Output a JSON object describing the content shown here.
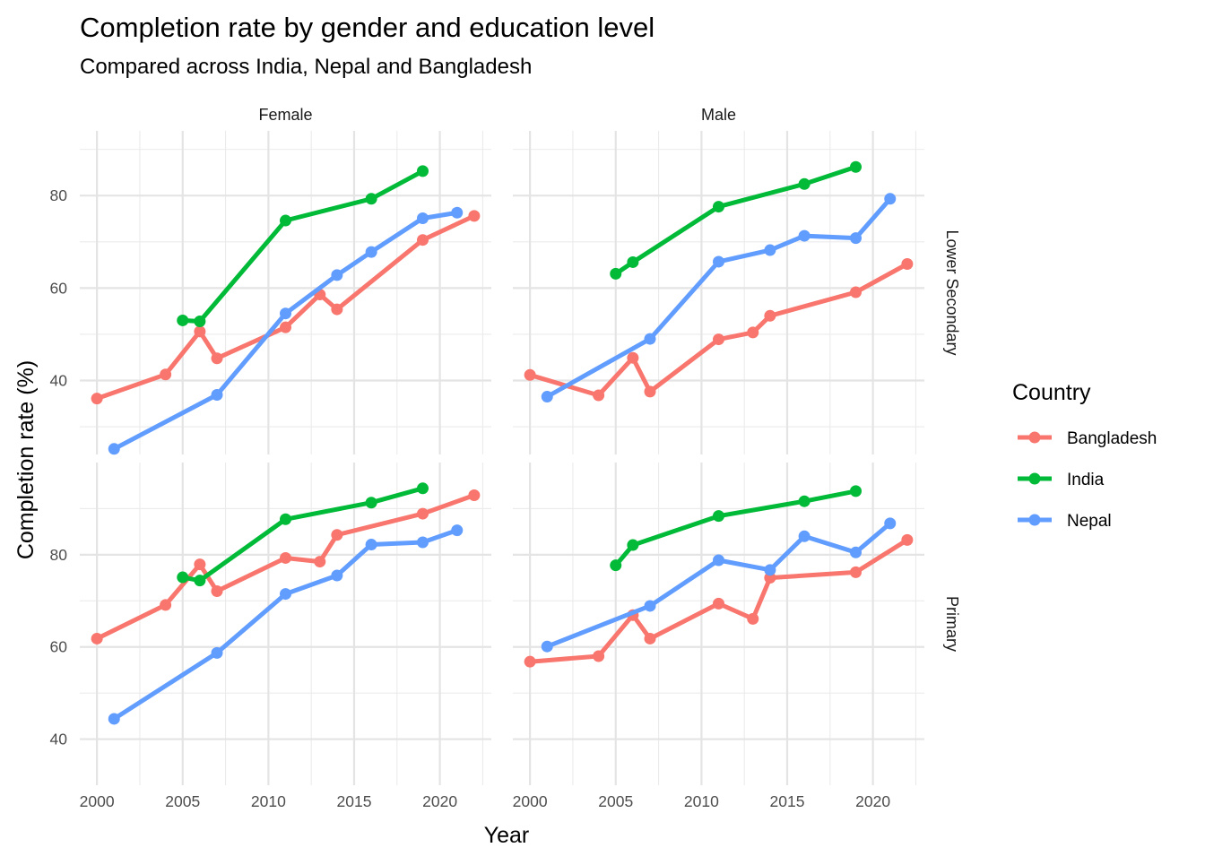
{
  "chart_data": {
    "type": "line",
    "title": "Completion rate by gender and education level",
    "subtitle": "Compared across India, Nepal and Bangladesh",
    "xlabel": "Year",
    "ylabel": "Completion rate (%)",
    "xlim": [
      1999,
      2023
    ],
    "x_ticks": [
      "2000",
      "2005",
      "2010",
      "2015",
      "2020"
    ],
    "y_ticks": [
      "40",
      "60",
      "80"
    ],
    "facet_cols": [
      "Female",
      "Male"
    ],
    "facet_rows": [
      "Lower Secondary",
      "Primary"
    ],
    "grid": true,
    "legend": {
      "title": "Country",
      "position": "right",
      "entries": [
        {
          "name": "Bangladesh",
          "color": "#F8766D"
        },
        {
          "name": "India",
          "color": "#00BA38"
        },
        {
          "name": "Nepal",
          "color": "#619CFF"
        }
      ]
    },
    "panels": [
      {
        "col": "Female",
        "row": "Lower Secondary",
        "ylim": [
          24,
          94
        ],
        "series": [
          {
            "name": "Bangladesh",
            "x": [
              2000,
              2004,
              2006,
              2007,
              2011,
              2013,
              2014,
              2019,
              2022
            ],
            "y": [
              36.1,
              41.3,
              50.6,
              44.8,
              51.5,
              58.6,
              55.4,
              70.4,
              75.6
            ]
          },
          {
            "name": "India",
            "x": [
              2005,
              2006,
              2011,
              2016,
              2019
            ],
            "y": [
              53.0,
              52.8,
              74.6,
              79.3,
              85.3
            ]
          },
          {
            "name": "Nepal",
            "x": [
              2001,
              2007,
              2011,
              2014,
              2016,
              2019,
              2021
            ],
            "y": [
              25.2,
              36.9,
              54.5,
              62.8,
              67.8,
              75.1,
              76.3
            ]
          }
        ]
      },
      {
        "col": "Male",
        "row": "Lower Secondary",
        "ylim": [
          24,
          94
        ],
        "series": [
          {
            "name": "Bangladesh",
            "x": [
              2000,
              2004,
              2006,
              2007,
              2011,
              2013,
              2014,
              2019,
              2022
            ],
            "y": [
              41.2,
              36.8,
              44.9,
              37.6,
              48.9,
              50.4,
              54.0,
              59.1,
              65.2
            ]
          },
          {
            "name": "India",
            "x": [
              2005,
              2006,
              2011,
              2016,
              2019
            ],
            "y": [
              63.1,
              65.6,
              77.6,
              82.5,
              86.2
            ]
          },
          {
            "name": "Nepal",
            "x": [
              2001,
              2007,
              2011,
              2014,
              2016,
              2019,
              2021
            ],
            "y": [
              36.5,
              49.0,
              65.7,
              68.2,
              71.3,
              70.8,
              79.3
            ]
          }
        ]
      },
      {
        "col": "Female",
        "row": "Primary",
        "ylim": [
          30,
          100
        ],
        "series": [
          {
            "name": "Bangladesh",
            "x": [
              2000,
              2004,
              2006,
              2007,
              2011,
              2013,
              2014,
              2019,
              2022
            ],
            "y": [
              61.8,
              69.1,
              77.9,
              72.1,
              79.3,
              78.5,
              84.3,
              88.9,
              92.9
            ]
          },
          {
            "name": "India",
            "x": [
              2005,
              2006,
              2011,
              2016,
              2019
            ],
            "y": [
              75.1,
              74.4,
              87.7,
              91.3,
              94.4
            ]
          },
          {
            "name": "Nepal",
            "x": [
              2001,
              2007,
              2011,
              2014,
              2016,
              2019,
              2021
            ],
            "y": [
              44.4,
              58.7,
              71.5,
              75.5,
              82.2,
              82.7,
              85.3
            ]
          }
        ]
      },
      {
        "col": "Male",
        "row": "Primary",
        "ylim": [
          30,
          100
        ],
        "series": [
          {
            "name": "Bangladesh",
            "x": [
              2000,
              2004,
              2006,
              2007,
              2011,
              2013,
              2014,
              2019,
              2022
            ],
            "y": [
              56.8,
              58.0,
              66.9,
              61.8,
              69.4,
              66.1,
              75.0,
              76.2,
              83.2
            ]
          },
          {
            "name": "India",
            "x": [
              2005,
              2006,
              2011,
              2016,
              2019
            ],
            "y": [
              77.7,
              82.1,
              88.4,
              91.6,
              93.8
            ]
          },
          {
            "name": "Nepal",
            "x": [
              2001,
              2007,
              2011,
              2014,
              2016,
              2019,
              2021
            ],
            "y": [
              60.1,
              68.9,
              78.8,
              76.7,
              84.0,
              80.5,
              86.8
            ]
          }
        ]
      }
    ]
  }
}
